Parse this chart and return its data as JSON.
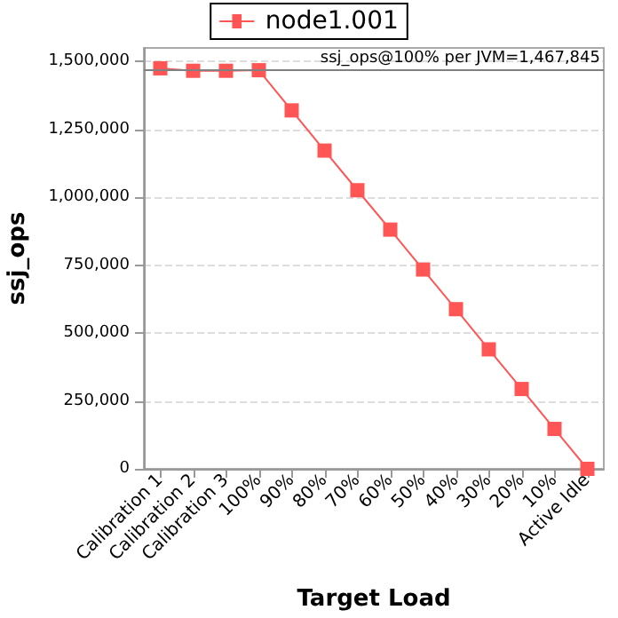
{
  "chart_data": {
    "type": "line",
    "xlabel": "Target Load",
    "ylabel": "ssj_ops",
    "categories": [
      "Calibration 1",
      "Calibration 2",
      "Calibration 3",
      "100%",
      "90%",
      "80%",
      "70%",
      "60%",
      "50%",
      "40%",
      "30%",
      "20%",
      "10%",
      "Active Idle"
    ],
    "series": [
      {
        "name": "node1.001",
        "color": "#ff5555",
        "values": [
          1475000,
          1466000,
          1466000,
          1468000,
          1320000,
          1172000,
          1026000,
          881000,
          734000,
          588000,
          440000,
          294000,
          147000,
          0
        ]
      }
    ],
    "ylim": [
      0,
      1550000
    ],
    "yticks": [
      0,
      {
        "value": 250000,
        "label": "250,000"
      },
      {
        "value": 500000,
        "label": "500,000"
      },
      {
        "value": 750000,
        "label": "750,000"
      },
      {
        "value": 1000000,
        "label": "1,000,000"
      },
      {
        "value": 1250000,
        "label": "1,250,000"
      },
      {
        "value": 1500000,
        "label": "1,500,000"
      }
    ],
    "ref_lines": [
      {
        "axis": "y",
        "value": 1467845,
        "label": "ssj_ops@100% per JVM=1,467,845",
        "color": "#808080"
      }
    ],
    "grid": "y",
    "legend": "top",
    "marker": "square",
    "line_style": "solid"
  }
}
